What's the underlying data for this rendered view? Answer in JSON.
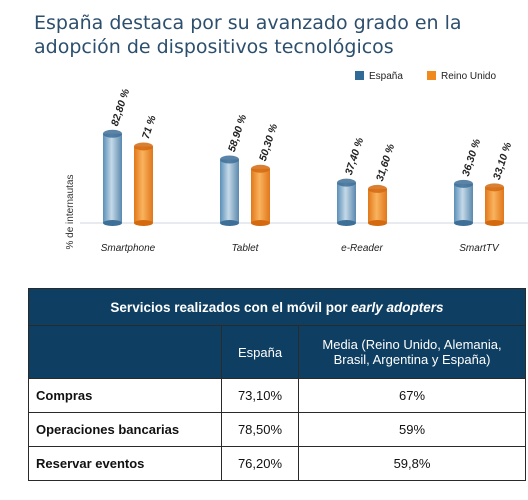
{
  "title": "España destaca por su avanzado grado en  la adopción de dispositivos tecnológicos",
  "chart_data": {
    "type": "bar",
    "title": "España destaca por su avanzado grado en  la adopción de dispositivos tecnológicos",
    "ylabel": "% de internautas",
    "categories": [
      "Smartphone",
      "Tablet",
      "e-Reader",
      "SmartTV"
    ],
    "series": [
      {
        "name": "España",
        "values": [
          82.8,
          58.9,
          37.4,
          36.3
        ],
        "labels": [
          "82,80 %",
          "58,90 %",
          "37,40 %",
          "36,30 %"
        ],
        "color": "#2f6b96"
      },
      {
        "name": "Reino Unido",
        "values": [
          71,
          50.3,
          31.6,
          33.1
        ],
        "labels": [
          "71 %",
          "50,30 %",
          "31,60 %",
          "33,10 %"
        ],
        "color": "#f18a1c"
      }
    ],
    "ylim": [
      0,
      100
    ],
    "grid": false,
    "legend": "top-right"
  },
  "table": {
    "title_prefix": "Servicios realizados con el móvil por ",
    "title_emphasis": "early adopters",
    "columns": [
      "España",
      "Media (Reino Unido, Alemania, Brasil, Argentina y España)"
    ],
    "rows": [
      {
        "label": "Compras",
        "espana": "73,10%",
        "media": "67%"
      },
      {
        "label": "Operaciones bancarias",
        "espana": "78,50%",
        "media": "59%"
      },
      {
        "label": "Reservar eventos",
        "espana": "76,20%",
        "media": "59,8%"
      }
    ]
  }
}
